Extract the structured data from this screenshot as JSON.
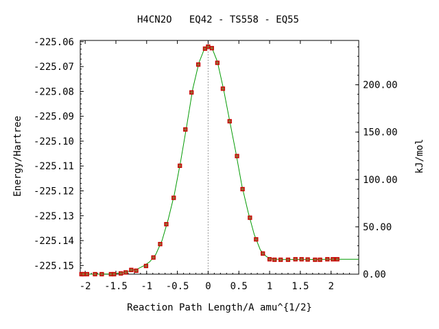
{
  "chart_data": {
    "type": "line",
    "title": "H4CN2O   EQ42 - TS558 - EQ55",
    "xlabel": "Reaction Path Length/A amu^{1/2}",
    "ylabel": "Energy/Hartree",
    "y2label": "kJ/mol",
    "xlim": [
      -2.08,
      2.45
    ],
    "ylim": [
      -225.1535,
      -225.0595
    ],
    "y2lim": [
      0,
      246.8
    ],
    "x_ticks": [
      "-2",
      "-1.5",
      "-1",
      "-0.5",
      "0",
      "0.5",
      "1",
      "1.5",
      "2"
    ],
    "x_tick_values": [
      -2,
      -1.5,
      -1,
      -0.5,
      0,
      0.5,
      1,
      1.5,
      2
    ],
    "y_ticks": [
      "-225.06",
      "-225.07",
      "-225.08",
      "-225.09",
      "-225.10",
      "-225.11",
      "-225.12",
      "-225.13",
      "-225.14",
      "-225.15"
    ],
    "y_tick_values": [
      -225.06,
      -225.07,
      -225.08,
      -225.09,
      -225.1,
      -225.11,
      -225.12,
      -225.13,
      -225.14,
      -225.15
    ],
    "y2_ticks": [
      "0.00",
      "50.00",
      "100.00",
      "150.00",
      "200.00"
    ],
    "y2_tick_values": [
      0,
      50,
      100,
      150,
      200
    ],
    "ts_x": 0,
    "colors": {
      "curve": "#009900",
      "points": "#cc0000",
      "point_fill": "#996633",
      "ts_line": "#999999"
    },
    "points": [
      [
        -2.06,
        -225.1535
      ],
      [
        -2.03,
        -225.1535
      ],
      [
        -1.97,
        -225.1535
      ],
      [
        -1.84,
        -225.1535
      ],
      [
        -1.73,
        -225.1535
      ],
      [
        -1.58,
        -225.1535
      ],
      [
        -1.53,
        -225.1535
      ],
      [
        -1.42,
        -225.1532
      ],
      [
        -1.34,
        -225.1528
      ],
      [
        -1.25,
        -225.1518
      ],
      [
        -1.17,
        -225.1521
      ],
      [
        -1.01,
        -225.1502
      ],
      [
        -0.89,
        -225.1468
      ],
      [
        -0.78,
        -225.1414
      ],
      [
        -0.68,
        -225.1334
      ],
      [
        -0.56,
        -225.1228
      ],
      [
        -0.46,
        -225.1099
      ],
      [
        -0.37,
        -225.0953
      ],
      [
        -0.27,
        -225.0804
      ],
      [
        -0.16,
        -225.0692
      ],
      [
        -0.05,
        -225.0628
      ],
      [
        0.0,
        -225.062
      ],
      [
        0.06,
        -225.0626
      ],
      [
        0.15,
        -225.0685
      ],
      [
        0.24,
        -225.0789
      ],
      [
        0.35,
        -225.092
      ],
      [
        0.47,
        -225.106
      ],
      [
        0.56,
        -225.1193
      ],
      [
        0.68,
        -225.1308
      ],
      [
        0.78,
        -225.1395
      ],
      [
        0.89,
        -225.1452
      ],
      [
        1.0,
        -225.1475
      ],
      [
        1.08,
        -225.1477
      ],
      [
        1.18,
        -225.1477
      ],
      [
        1.3,
        -225.1477
      ],
      [
        1.42,
        -225.1475
      ],
      [
        1.52,
        -225.1475
      ],
      [
        1.62,
        -225.1476
      ],
      [
        1.74,
        -225.1477
      ],
      [
        1.82,
        -225.1477
      ],
      [
        1.94,
        -225.1475
      ],
      [
        2.03,
        -225.1475
      ],
      [
        2.1,
        -225.1475
      ]
    ],
    "curve": [
      [
        -2.08,
        -225.1535
      ],
      [
        -1.8,
        -225.1535
      ],
      [
        -1.6,
        -225.1534
      ],
      [
        -1.45,
        -225.1531
      ],
      [
        -1.3,
        -225.1524
      ],
      [
        -1.15,
        -225.1514
      ],
      [
        -1.05,
        -225.1502
      ],
      [
        -0.95,
        -225.1485
      ],
      [
        -0.85,
        -225.1455
      ],
      [
        -0.75,
        -225.14
      ],
      [
        -0.65,
        -225.1315
      ],
      [
        -0.55,
        -225.1215
      ],
      [
        -0.45,
        -225.1085
      ],
      [
        -0.35,
        -225.094
      ],
      [
        -0.25,
        -225.079
      ],
      [
        -0.15,
        -225.0685
      ],
      [
        -0.07,
        -225.0635
      ],
      [
        0.0,
        -225.062
      ],
      [
        0.07,
        -225.063
      ],
      [
        0.15,
        -225.068
      ],
      [
        0.25,
        -225.079
      ],
      [
        0.35,
        -225.0918
      ],
      [
        0.45,
        -225.1045
      ],
      [
        0.55,
        -225.118
      ],
      [
        0.65,
        -225.1285
      ],
      [
        0.75,
        -225.1375
      ],
      [
        0.85,
        -225.1438
      ],
      [
        0.95,
        -225.1465
      ],
      [
        1.05,
        -225.1474
      ],
      [
        1.2,
        -225.1476
      ],
      [
        1.6,
        -225.1476
      ],
      [
        2.0,
        -225.1475
      ],
      [
        2.45,
        -225.1475
      ]
    ]
  }
}
